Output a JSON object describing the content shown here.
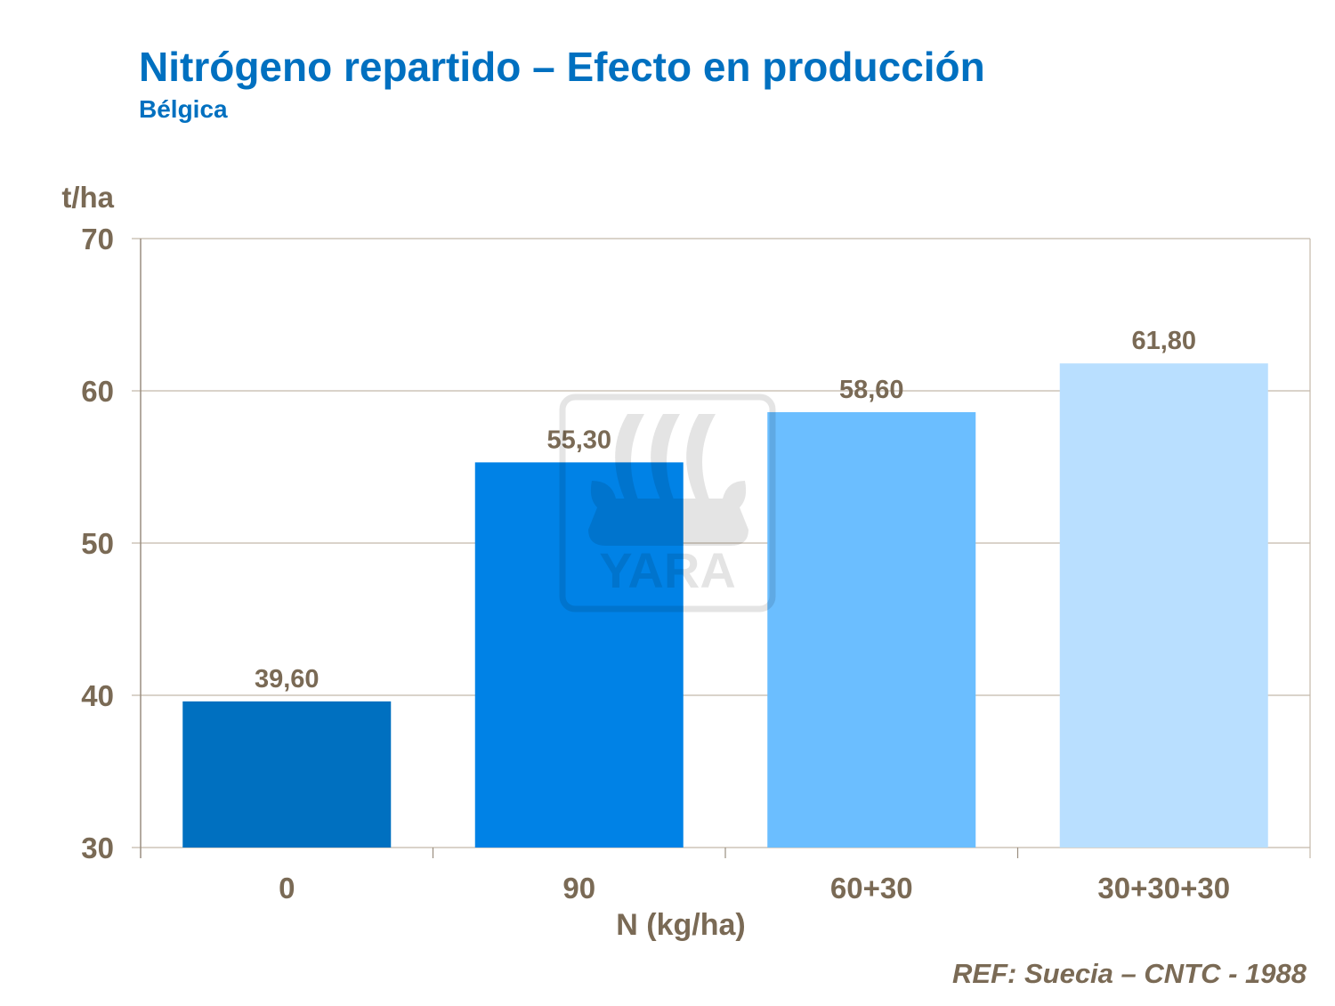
{
  "title": "Nitrógeno repartido – Efecto en producción",
  "subtitle": "Bélgica",
  "reference": "REF: Suecia – CNTC - 1988",
  "watermark": "YARA",
  "chart_data": {
    "type": "bar",
    "title": "Nitrógeno repartido – Efecto en producción",
    "subtitle": "Bélgica",
    "xlabel": "N (kg/ha)",
    "ylabel": "t/ha",
    "ylim": [
      30,
      70
    ],
    "yticks": [
      30,
      40,
      50,
      60,
      70
    ],
    "grid": true,
    "categories": [
      "0",
      "90",
      "60+30",
      "30+30+30"
    ],
    "values": [
      39.6,
      55.3,
      58.6,
      61.8
    ],
    "data_labels": [
      "39,60",
      "55,30",
      "58,60",
      "61,80"
    ],
    "colors": [
      "#0070C0",
      "#0082E6",
      "#6BBEFF",
      "#B9DFFF"
    ],
    "gridline_color": "#C4B9AA",
    "text_color": "#7A6A55"
  }
}
